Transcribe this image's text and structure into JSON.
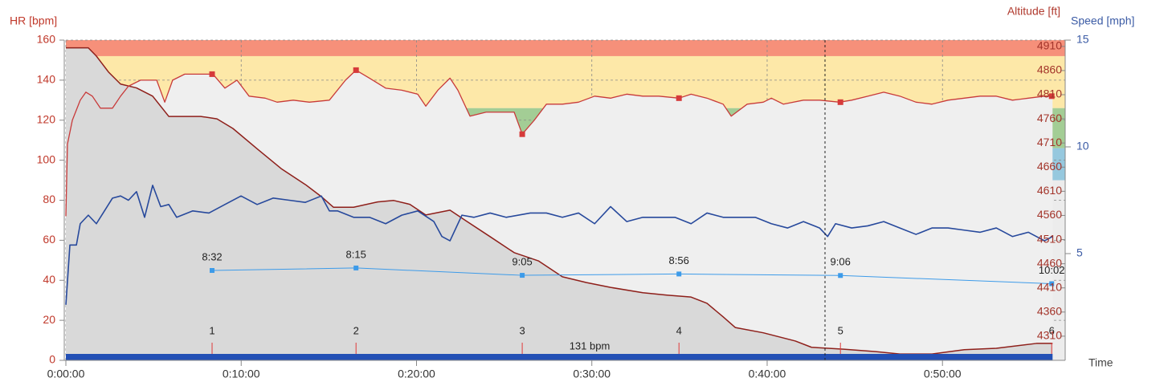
{
  "chart_data": {
    "type": "line",
    "x_label": "Time",
    "y_label": "HR [bpm]",
    "y2_label": "Altitude [ft]",
    "y3_label": "Speed [mph]",
    "xlim": [
      0,
      57
    ],
    "xticks": [
      {
        "value": 0,
        "label": "0:00:00"
      },
      {
        "value": 10,
        "label": "0:10:00"
      },
      {
        "value": 20,
        "label": "0:20:00"
      },
      {
        "value": 30,
        "label": "0:30:00"
      },
      {
        "value": 40,
        "label": "0:40:00"
      },
      {
        "value": 50,
        "label": "0:50:00"
      }
    ],
    "ylim": [
      0,
      160
    ],
    "yticks": [
      0,
      20,
      40,
      60,
      80,
      100,
      120,
      140,
      160
    ],
    "y2lim": [
      4260,
      4923
    ],
    "y2ticks": [
      4310,
      4360,
      4410,
      4460,
      4510,
      4560,
      4610,
      4660,
      4710,
      4760,
      4810,
      4860,
      4910
    ],
    "y3lim": [
      0,
      15
    ],
    "y3ticks": [
      5,
      10,
      15
    ],
    "y4lim": [
      18.71,
      -17.56
    ],
    "grid": true,
    "zones": [
      {
        "from": 152,
        "to": 160,
        "color": "#f6907a"
      },
      {
        "from": 126,
        "to": 152,
        "color": "#fde8a8"
      },
      {
        "from": 106,
        "to": 126,
        "color": "#a3cd95"
      },
      {
        "from": 90,
        "to": 106,
        "color": "#96c8de"
      }
    ],
    "series": [
      {
        "axis": "y",
        "color": "#c83a3a",
        "fill": "#efefef",
        "x": [
          0,
          0.09,
          0.37,
          0.82,
          1.14,
          1.51,
          1.97,
          2.66,
          3.12,
          3.57,
          4.26,
          5.18,
          5.64,
          6.09,
          6.78,
          7.7,
          8.39,
          9.07,
          9.76,
          10.45,
          11.37,
          12.05,
          12.97,
          13.89,
          15.03,
          15.95,
          16.55,
          17.32,
          18.24,
          19.16,
          20.07,
          20.53,
          21.22,
          21.91,
          22.36,
          23.05,
          23.97,
          24.89,
          25.57,
          26.03,
          26.72,
          27.41,
          28.32,
          29.24,
          30.16,
          31.07,
          31.99,
          32.91,
          33.82,
          34.97,
          35.66,
          36.57,
          37.49,
          37.95,
          38.86,
          39.78,
          40.24,
          40.93,
          42.07,
          42.99,
          44.13,
          44.82,
          45.74,
          46.65,
          47.57,
          48.49,
          49.4,
          50.32,
          51.24,
          52.15,
          53.07,
          53.99,
          54.9,
          55.82,
          56.28
        ],
        "values": [
          72,
          108,
          120,
          130,
          134,
          132,
          126,
          126,
          132,
          137,
          140,
          140,
          129,
          140,
          143,
          143,
          143,
          136,
          140,
          132,
          131,
          129,
          130,
          129,
          130,
          140,
          145,
          141,
          136,
          135,
          133,
          127,
          135,
          141,
          135,
          122,
          124,
          124,
          124,
          113,
          120,
          128,
          128,
          129,
          132,
          131,
          133,
          132,
          132,
          131,
          133,
          131,
          128,
          122,
          128,
          129,
          131,
          128,
          130,
          130,
          129,
          130,
          132,
          134,
          132,
          129,
          128,
          130,
          131,
          132,
          132,
          130,
          131,
          132,
          132
        ]
      },
      {
        "axis": "y2",
        "color": "#8e1f1a",
        "fill": "#d9d9d9",
        "x": [
          0,
          1.28,
          1.74,
          2.43,
          3.12,
          4.03,
          4.95,
          5.87,
          7.7,
          8.62,
          9.53,
          10.91,
          12.28,
          13.66,
          14.57,
          15.26,
          16.41,
          17.78,
          18.7,
          19.62,
          20.53,
          21.91,
          22.82,
          24.2,
          25.57,
          26.95,
          28.32,
          29.7,
          31.07,
          32.91,
          34.28,
          35.66,
          36.57,
          37.49,
          38.18,
          39.78,
          41.61,
          42.53,
          44.36,
          46.19,
          47.57,
          49.4,
          51.24,
          53.07,
          55.36,
          56.28
        ],
        "values": [
          4907,
          4907,
          4890,
          4857,
          4832,
          4824,
          4807,
          4765,
          4765,
          4760,
          4740,
          4698,
          4657,
          4624,
          4599,
          4577,
          4577,
          4588,
          4591,
          4583,
          4561,
          4571,
          4549,
          4516,
          4483,
          4466,
          4433,
          4421,
          4411,
          4400,
          4395,
          4391,
          4378,
          4350,
          4328,
          4317,
          4300,
          4287,
          4283,
          4278,
          4273,
          4273,
          4282,
          4285,
          4295,
          4295
        ]
      },
      {
        "axis": "y3",
        "color": "#27499c",
        "x": [
          0,
          0.23,
          0.6,
          0.82,
          1.28,
          1.74,
          2.2,
          2.66,
          3.12,
          3.57,
          4.03,
          4.49,
          4.95,
          5.41,
          5.87,
          6.32,
          7.24,
          8.16,
          9.07,
          9.99,
          10.91,
          11.82,
          12.74,
          13.66,
          14.57,
          15.03,
          15.49,
          16.41,
          17.32,
          18.24,
          19.16,
          20.07,
          20.99,
          21.45,
          21.91,
          22.59,
          23.28,
          24.2,
          25.11,
          26.49,
          27.41,
          28.32,
          29.24,
          30.16,
          31.07,
          31.99,
          32.91,
          33.82,
          34.74,
          35.66,
          36.57,
          37.49,
          38.4,
          39.32,
          40.24,
          41.16,
          42.07,
          42.99,
          43.45,
          43.9,
          44.82,
          45.74,
          46.65,
          47.57,
          48.49,
          49.4,
          50.32,
          51.24,
          52.15,
          53.07,
          53.99,
          54.9,
          55.82,
          56.28
        ],
        "values": [
          2.6,
          5.4,
          5.4,
          6.4,
          6.8,
          6.4,
          7.0,
          7.6,
          7.7,
          7.5,
          7.9,
          6.7,
          8.2,
          7.2,
          7.3,
          6.7,
          7.0,
          6.9,
          7.3,
          7.7,
          7.3,
          7.6,
          7.5,
          7.4,
          7.7,
          7.0,
          7.0,
          6.7,
          6.7,
          6.4,
          6.8,
          7.0,
          6.5,
          5.8,
          5.6,
          6.8,
          6.7,
          6.9,
          6.7,
          6.9,
          6.9,
          6.7,
          6.9,
          6.4,
          7.2,
          6.5,
          6.7,
          6.7,
          6.7,
          6.4,
          6.9,
          6.7,
          6.7,
          6.7,
          6.4,
          6.2,
          6.5,
          6.2,
          5.8,
          6.4,
          6.2,
          6.3,
          6.5,
          6.2,
          5.9,
          6.2,
          6.2,
          6.1,
          6.0,
          6.2,
          5.8,
          6.0,
          5.6,
          5.8
        ]
      },
      {
        "axis": "y4",
        "color": "#3d9be9",
        "x": [
          8.34,
          16.55,
          26.03,
          34.97,
          44.18,
          56.23
        ],
        "values": [
          8.53,
          8.25,
          9.08,
          8.93,
          9.1,
          10.03
        ],
        "value_labels": [
          "8:32",
          "8:15",
          "9:05",
          "8:56",
          "9:06",
          "10:02"
        ]
      }
    ],
    "laps": {
      "x": [
        8.34,
        16.55,
        26.03,
        34.97,
        44.18,
        56.23
      ],
      "labels": [
        1,
        2,
        3,
        4,
        5,
        6
      ],
      "hr": [
        143,
        145,
        113,
        131,
        129,
        132
      ]
    },
    "average": {
      "value": 131,
      "label": "131 bpm",
      "color": "#2350b5"
    },
    "cursor": 43.3
  }
}
